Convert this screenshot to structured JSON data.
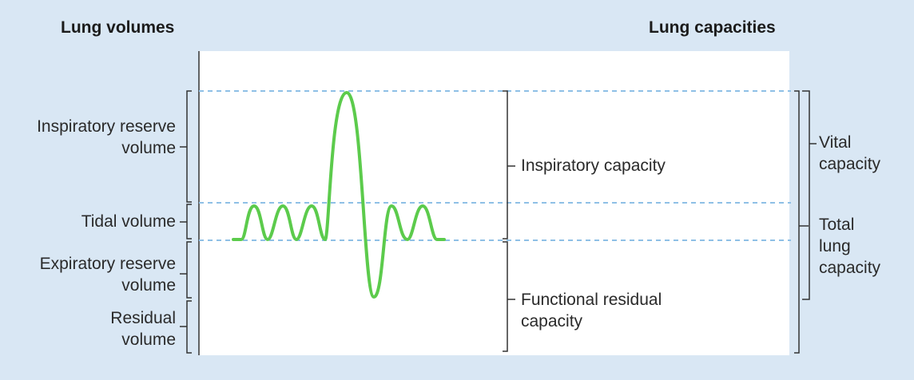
{
  "headings": {
    "volumes": "Lung volumes",
    "capacities": "Lung capacities"
  },
  "volumes": {
    "inspiratory_reserve_line1": "Inspiratory reserve",
    "inspiratory_reserve_line2": "volume",
    "tidal": "Tidal volume",
    "expiratory_reserve_line1": "Expiratory reserve",
    "expiratory_reserve_line2": "volume",
    "residual_line1": "Residual",
    "residual_line2": "volume"
  },
  "capacities": {
    "inspiratory": "Inspiratory capacity",
    "functional_residual_line1": "Functional residual",
    "functional_residual_line2": "capacity",
    "vital_line1": "Vital",
    "vital_line2": "capacity",
    "total_line1": "Total",
    "total_line2": "lung",
    "total_line3": "capacity"
  },
  "colors": {
    "background": "#d9e7f4",
    "panel": "#ffffff",
    "trace": "#5ccb4c",
    "dashed": "#8ec0e6",
    "bracket": "#333333"
  }
}
